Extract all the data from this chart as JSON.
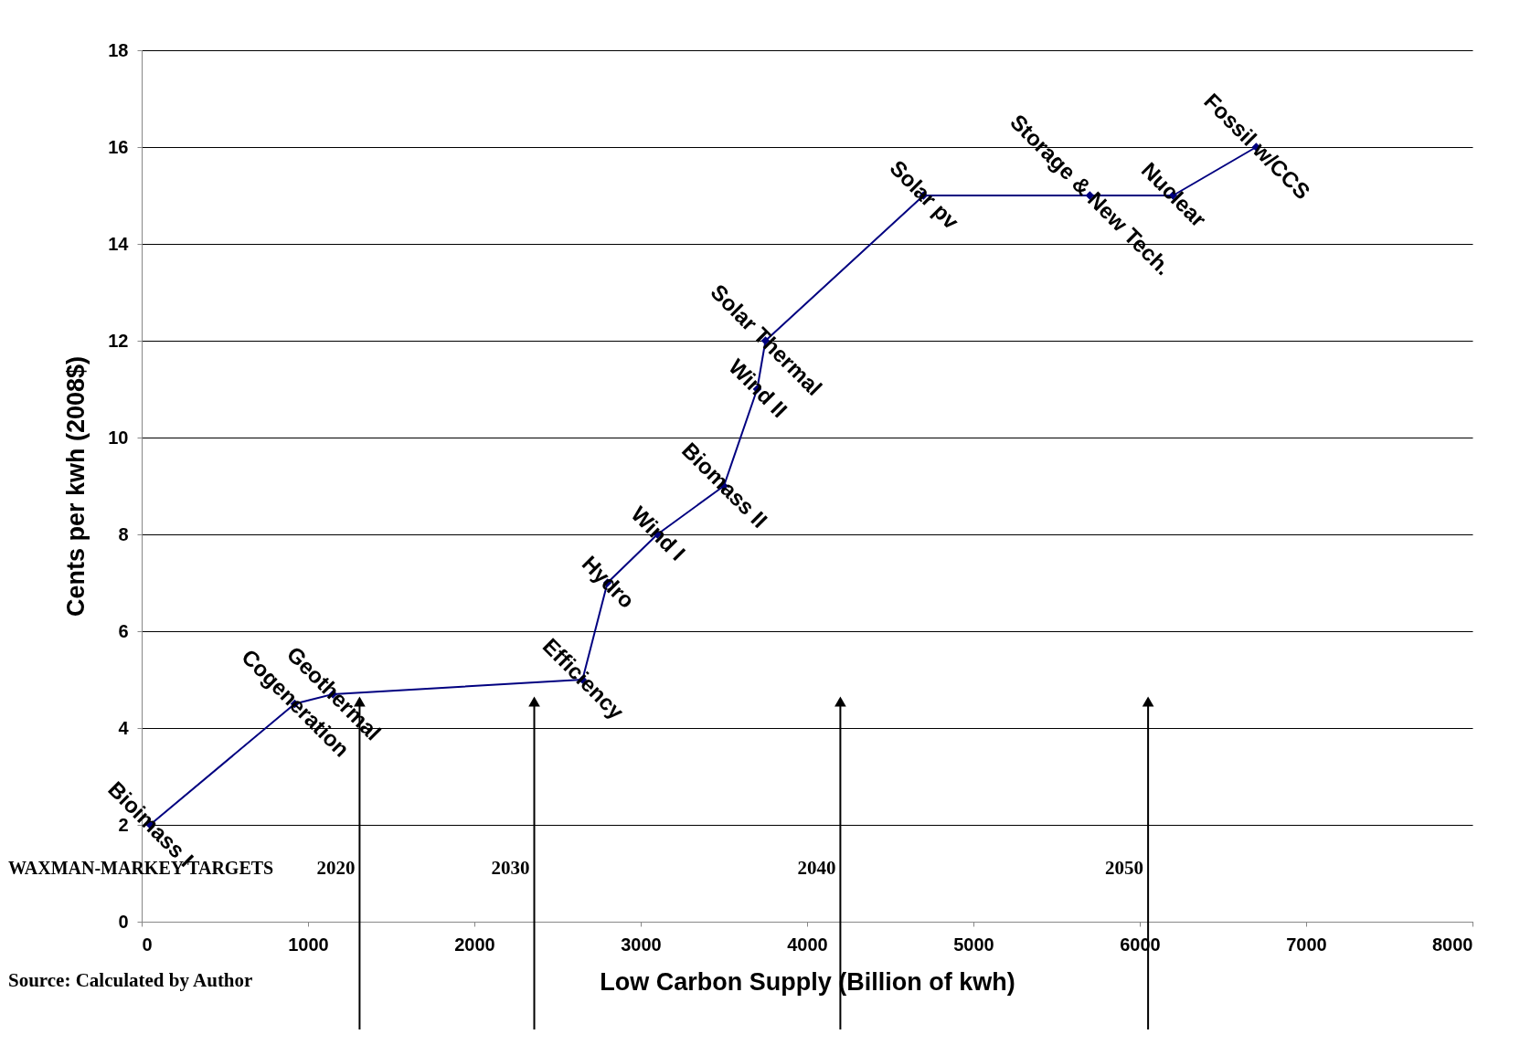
{
  "chart_data": {
    "type": "line",
    "xlabel": "Low Carbon Supply (Billion of kwh)",
    "ylabel": "Cents per kwh (2008$)",
    "x": [
      50,
      920,
      1150,
      2650,
      2800,
      3100,
      3500,
      3700,
      3750,
      4700,
      5700,
      6200,
      6700
    ],
    "series": [
      {
        "color": "#000080",
        "values": [
          2,
          4.5,
          4.7,
          5,
          7,
          8,
          9,
          11,
          12,
          15,
          15,
          15,
          16
        ],
        "value_labels": [
          "Bioimass I",
          "Cogeneration",
          "Geothermal",
          "Efficiency",
          "Hydro",
          "Wind I",
          "Biomass II",
          "Wind II",
          "Solar Thermal",
          "Solar pv",
          "Storage & New Tech.",
          "Nuclear",
          "Fossil w/CCS"
        ]
      }
    ],
    "xlim": [
      0,
      8000
    ],
    "xticks": [
      0,
      1000,
      2000,
      3000,
      4000,
      5000,
      6000,
      7000,
      8000
    ],
    "ylim": [
      0,
      18
    ],
    "yticks": [
      0,
      2,
      4,
      6,
      8,
      10,
      12,
      14,
      16,
      18
    ],
    "grid": "y",
    "marker": "diamond",
    "line_style": "solid",
    "annotations": [
      "WAXMAN-MARKEY TARGETS",
      "Source: Calculated by Author",
      "2020",
      "2030",
      "2040",
      "2050"
    ],
    "ref_lines": [
      {
        "axis": "x",
        "value": 1310
      },
      {
        "axis": "x",
        "value": 2360
      },
      {
        "axis": "x",
        "value": 4200
      },
      {
        "axis": "x",
        "value": 6050
      }
    ]
  }
}
